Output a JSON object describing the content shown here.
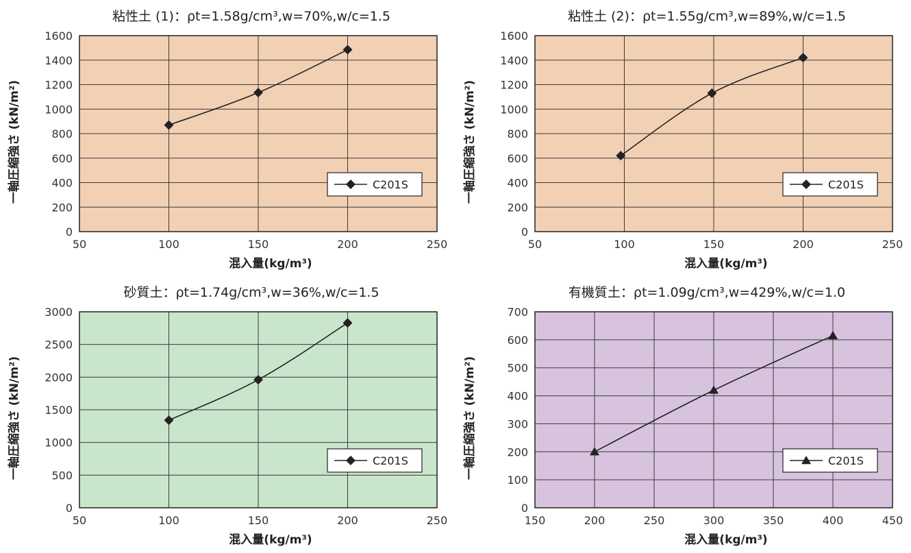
{
  "chart_data": [
    {
      "type": "line",
      "title": "粘性土 (1)：ρt=1.58g/cm³,w=70%,w/c=1.5",
      "xlabel": "混入量(kg/m³)",
      "ylabel": "一軸圧縮強さ (kN/m²)",
      "xlim": [
        50,
        250
      ],
      "ylim": [
        0,
        1600
      ],
      "xticks": [
        50,
        100,
        150,
        200,
        250
      ],
      "yticks": [
        0,
        200,
        400,
        600,
        800,
        1000,
        1200,
        1400,
        1600
      ],
      "grid": true,
      "legend_position": "lower-right",
      "background": "#f2d0b4",
      "series": [
        {
          "name": "C201S",
          "marker": "diamond",
          "x": [
            100,
            150,
            200
          ],
          "y": [
            870,
            1135,
            1485
          ]
        }
      ]
    },
    {
      "type": "line",
      "title": "粘性土 (2)：ρt=1.55g/cm³,w=89%,w/c=1.5",
      "xlabel": "混入量(kg/m³)",
      "ylabel": "一軸圧縮強さ (kN/m²)",
      "xlim": [
        50,
        250
      ],
      "ylim": [
        0,
        1600
      ],
      "xticks": [
        50,
        100,
        150,
        200,
        250
      ],
      "yticks": [
        0,
        200,
        400,
        600,
        800,
        1000,
        1200,
        1400,
        1600
      ],
      "grid": true,
      "legend_position": "lower-right",
      "background": "#f2d0b4",
      "series": [
        {
          "name": "C201S",
          "marker": "diamond",
          "x": [
            98,
            149,
            200
          ],
          "y": [
            620,
            1130,
            1420
          ]
        }
      ]
    },
    {
      "type": "line",
      "title": "砂質土：ρt=1.74g/cm³,w=36%,w/c=1.5",
      "xlabel": "混入量(kg/m³)",
      "ylabel": "一軸圧縮強さ (kN/m²)",
      "xlim": [
        50,
        250
      ],
      "ylim": [
        0,
        3000
      ],
      "xticks": [
        50,
        100,
        150,
        200,
        250
      ],
      "yticks": [
        0,
        500,
        1000,
        1500,
        2000,
        2500,
        3000
      ],
      "grid": true,
      "legend_position": "lower-right",
      "background": "#c9e6cc",
      "series": [
        {
          "name": "C201S",
          "marker": "diamond",
          "x": [
            100,
            150,
            200
          ],
          "y": [
            1340,
            1960,
            2830
          ]
        }
      ]
    },
    {
      "type": "line",
      "title": "有機質土：ρt=1.09g/cm³,w=429%,w/c=1.0",
      "xlabel": "混入量(kg/m³)",
      "ylabel": "一軸圧縮強さ (kN/m²)",
      "xlim": [
        150,
        450
      ],
      "ylim": [
        0,
        700
      ],
      "xticks": [
        150,
        200,
        250,
        300,
        350,
        400,
        450
      ],
      "yticks": [
        0,
        100,
        200,
        300,
        400,
        500,
        600,
        700
      ],
      "grid": true,
      "legend_position": "lower-right",
      "background": "#d8c3df",
      "series": [
        {
          "name": "C201S",
          "marker": "triangle",
          "x": [
            200,
            300,
            400
          ],
          "y": [
            200,
            420,
            615
          ]
        }
      ]
    }
  ]
}
